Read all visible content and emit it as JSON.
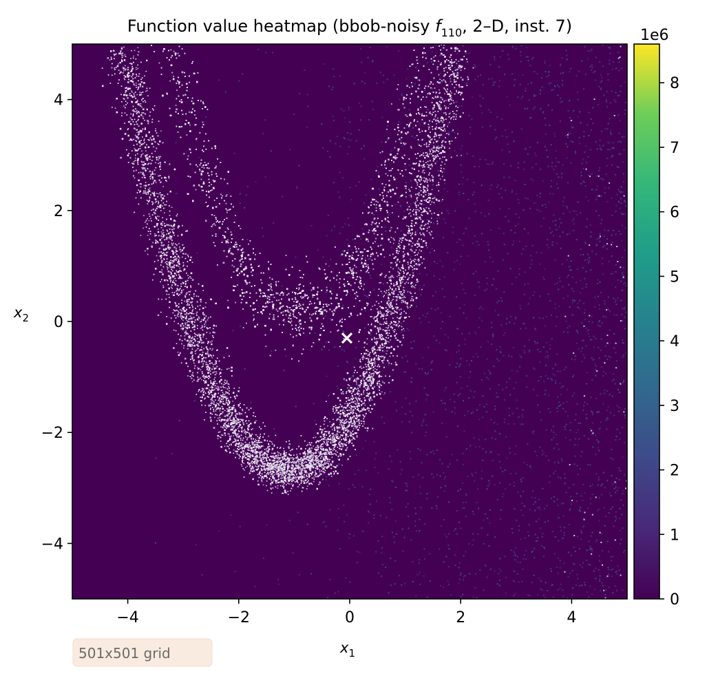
{
  "title_main": "Function value heatmap (bbob-noisy ",
  "title_fname": "f",
  "title_fsub": "110",
  "title_rest": ", 2–D, inst. 7)",
  "xlabel_var": "x",
  "xlabel_sub": "1",
  "ylabel_var": "x",
  "ylabel_sub": "2",
  "annotation": "501x501 grid",
  "colorbar": {
    "offset_label": "1e6",
    "ticks": [
      "0",
      "1",
      "2",
      "3",
      "4",
      "5",
      "6",
      "7",
      "8"
    ],
    "tick_values": [
      0,
      1,
      2,
      3,
      4,
      5,
      6,
      7,
      8
    ]
  },
  "chart_data": {
    "type": "heatmap",
    "grid": "501x501",
    "xlim": [
      -5,
      5
    ],
    "ylim": [
      -5,
      5
    ],
    "color_range": [
      0,
      8600000
    ],
    "colormap": "viridis",
    "x_ticks": [
      -4,
      -2,
      0,
      2,
      4
    ],
    "y_ticks": [
      -4,
      -2,
      0,
      2,
      4
    ],
    "x_tick_labels": [
      "−4",
      "−2",
      "0",
      "2",
      "4"
    ],
    "y_tick_labels": [
      "−4",
      "−2",
      "0",
      "2",
      "4"
    ],
    "optimum_marker": {
      "x": -0.05,
      "y": -0.3,
      "symbol": "x",
      "color": "#ffffff"
    },
    "ridges": [
      {
        "name": "outer",
        "vertex": [
          -1.1,
          -2.7
        ],
        "curvature": 0.85
      },
      {
        "name": "inner",
        "vertex": [
          -0.9,
          0.1
        ],
        "curvature": 0.9
      }
    ]
  }
}
